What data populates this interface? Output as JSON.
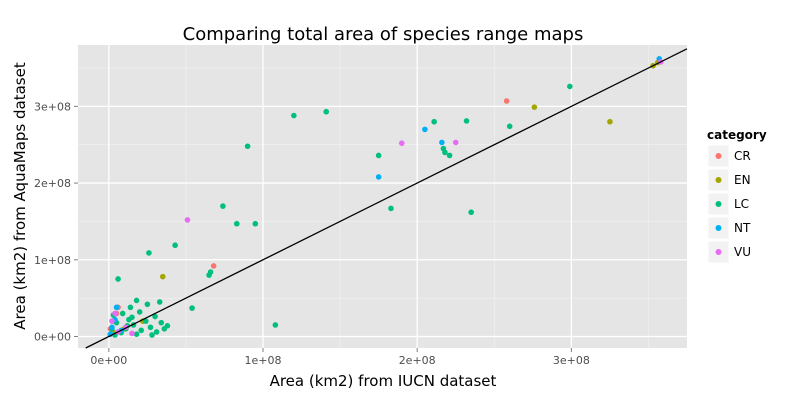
{
  "chart_data": {
    "type": "scatter",
    "title": "Comparing total area of species range maps",
    "xlabel": "Area (km2) from IUCN dataset",
    "ylabel": "Area (km2) from AquaMaps dataset",
    "xlim": [
      -20000000,
      375000000
    ],
    "ylim": [
      -15000000,
      380000000
    ],
    "x_ticks": [
      {
        "value": 0,
        "label": "0e+00"
      },
      {
        "value": 100000000,
        "label": "1e+08"
      },
      {
        "value": 200000000,
        "label": "2e+08"
      },
      {
        "value": 300000000,
        "label": "3e+08"
      }
    ],
    "y_ticks": [
      {
        "value": 0,
        "label": "0e+00"
      },
      {
        "value": 100000000,
        "label": "1e+08"
      },
      {
        "value": 200000000,
        "label": "2e+08"
      },
      {
        "value": 300000000,
        "label": "3e+08"
      }
    ],
    "grid": true,
    "legend": {
      "title": "category",
      "placement": "right"
    },
    "reference_line": {
      "type": "identity",
      "slope": 1,
      "intercept": 0
    },
    "series": [
      {
        "name": "CR",
        "color": "#F8766D",
        "points": [
          [
            258000000,
            307000000
          ],
          [
            68000000,
            92000000
          ],
          [
            6000000,
            38000000
          ],
          [
            5000000,
            30000000
          ],
          [
            3000000,
            20000000
          ],
          [
            1000000,
            10000000
          ],
          [
            2000000,
            5000000
          ]
        ]
      },
      {
        "name": "EN",
        "color": "#A3A500",
        "points": [
          [
            276000000,
            299000000
          ],
          [
            325000000,
            280000000
          ],
          [
            353000000,
            353000000
          ],
          [
            356000000,
            357000000
          ],
          [
            35000000,
            78000000
          ],
          [
            22000000,
            20000000
          ],
          [
            10000000,
            10000000
          ],
          [
            3000000,
            5000000
          ]
        ]
      },
      {
        "name": "LC",
        "color": "#00BF7D",
        "points": [
          [
            299000000,
            326000000
          ],
          [
            141000000,
            293000000
          ],
          [
            120000000,
            288000000
          ],
          [
            90000000,
            248000000
          ],
          [
            211000000,
            280000000
          ],
          [
            232000000,
            281000000
          ],
          [
            260000000,
            274000000
          ],
          [
            175000000,
            236000000
          ],
          [
            217000000,
            245000000
          ],
          [
            218000000,
            240000000
          ],
          [
            221000000,
            236000000
          ],
          [
            183000000,
            167000000
          ],
          [
            235000000,
            162000000
          ],
          [
            74000000,
            170000000
          ],
          [
            83000000,
            147000000
          ],
          [
            95000000,
            147000000
          ],
          [
            43000000,
            119000000
          ],
          [
            26000000,
            109000000
          ],
          [
            66000000,
            84000000
          ],
          [
            65000000,
            80000000
          ],
          [
            6000000,
            75000000
          ],
          [
            108000000,
            15000000
          ],
          [
            54000000,
            37000000
          ],
          [
            18000000,
            47000000
          ],
          [
            25000000,
            42000000
          ],
          [
            33000000,
            45000000
          ],
          [
            14000000,
            38000000
          ],
          [
            9000000,
            30000000
          ],
          [
            20000000,
            32000000
          ],
          [
            3000000,
            28000000
          ],
          [
            30000000,
            26000000
          ],
          [
            13000000,
            22000000
          ],
          [
            24000000,
            20000000
          ],
          [
            34000000,
            18000000
          ],
          [
            5000000,
            18000000
          ],
          [
            16000000,
            15000000
          ],
          [
            27000000,
            12000000
          ],
          [
            11000000,
            10000000
          ],
          [
            21000000,
            8000000
          ],
          [
            31000000,
            6000000
          ],
          [
            2000000,
            10000000
          ],
          [
            8000000,
            5000000
          ],
          [
            36000000,
            10000000
          ],
          [
            18000000,
            3000000
          ],
          [
            4000000,
            2000000
          ],
          [
            28000000,
            2000000
          ],
          [
            12000000,
            14000000
          ],
          [
            38000000,
            14000000
          ],
          [
            1000000,
            3000000
          ],
          [
            15000000,
            25000000
          ]
        ]
      },
      {
        "name": "NT",
        "color": "#00B0F6",
        "points": [
          [
            175000000,
            208000000
          ],
          [
            205000000,
            270000000
          ],
          [
            216000000,
            253000000
          ],
          [
            357000000,
            362000000
          ],
          [
            5000000,
            38000000
          ],
          [
            4000000,
            22000000
          ],
          [
            2000000,
            12000000
          ],
          [
            8000000,
            8000000
          ],
          [
            1000000,
            3000000
          ]
        ]
      },
      {
        "name": "VU",
        "color": "#E76BF3",
        "points": [
          [
            190000000,
            252000000
          ],
          [
            225000000,
            253000000
          ],
          [
            51000000,
            152000000
          ],
          [
            358000000,
            358000000
          ],
          [
            4000000,
            30000000
          ],
          [
            2000000,
            20000000
          ],
          [
            11000000,
            12000000
          ],
          [
            6000000,
            6000000
          ],
          [
            15000000,
            4000000
          ]
        ]
      }
    ]
  }
}
